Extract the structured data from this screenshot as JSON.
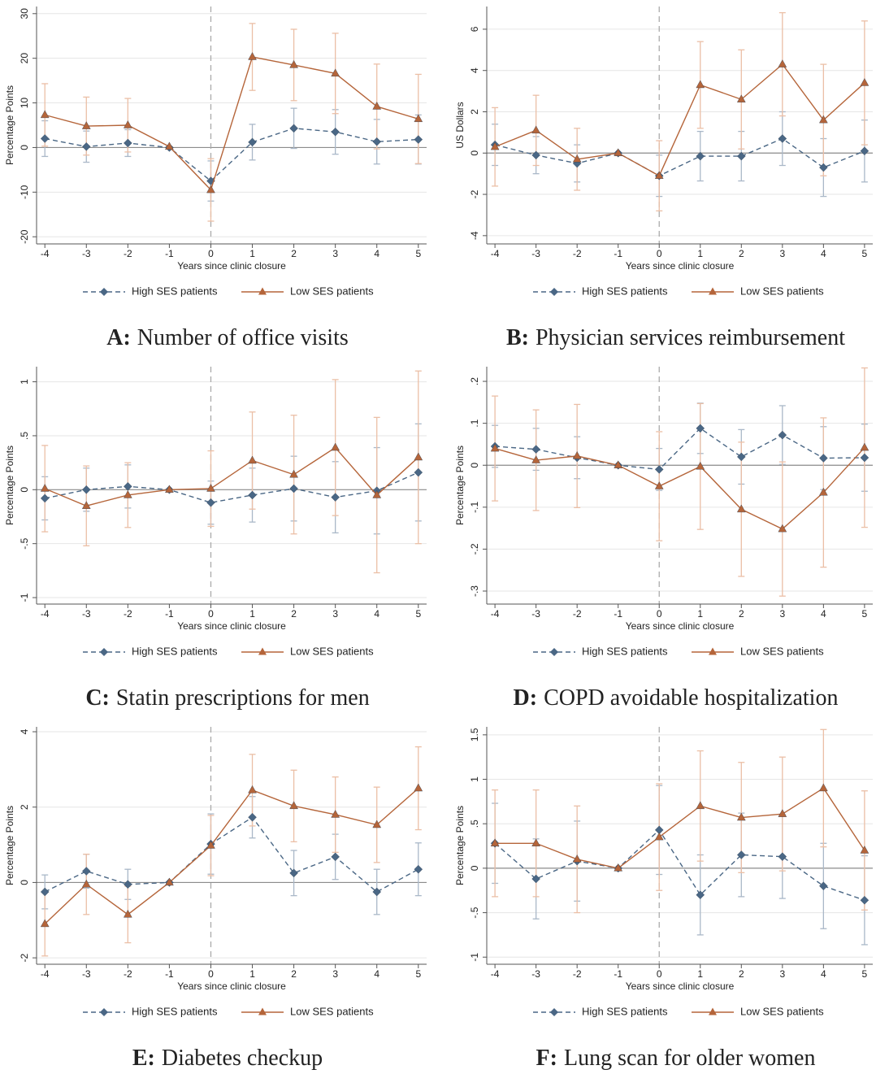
{
  "chart_data": [
    {
      "type": "line",
      "panel_label": "A:",
      "title": "Number of office visits",
      "ylabel": "Percentage Points",
      "xlabel": "Years since clinic closure",
      "x": [
        -4,
        -3,
        -2,
        -1,
        0,
        1,
        2,
        3,
        4,
        5
      ],
      "xlim": [
        -4.2,
        5.2
      ],
      "xticks": [
        -4,
        -3,
        -2,
        -1,
        0,
        1,
        2,
        3,
        4,
        5
      ],
      "ylim": [
        -21.6,
        31.6
      ],
      "yticks": [
        -20,
        -10,
        0,
        10,
        20,
        30
      ],
      "grid": true,
      "hline_y": 0,
      "vline_x": 0,
      "series": [
        {
          "name": "High SES patients",
          "color": "#4a6785",
          "error_color": "#aab8c8",
          "marker": "diamond",
          "dashed": true,
          "values": [
            2,
            0.2,
            1,
            0,
            -7.5,
            1.2,
            4.3,
            3.5,
            1.3,
            1.8
          ],
          "errors": [
            4,
            3.5,
            3,
            0,
            4.5,
            4,
            4.5,
            5,
            5,
            5.5
          ]
        },
        {
          "name": "Low SES patients",
          "color": "#b5653a",
          "error_color": "#ebbfa6",
          "marker": "triangle",
          "dashed": false,
          "values": [
            7.3,
            4.8,
            5,
            0.2,
            -9.5,
            20.3,
            18.5,
            16.6,
            9.2,
            6.4
          ],
          "errors": [
            7,
            6.5,
            6,
            0,
            7,
            7.5,
            8,
            9,
            9.5,
            10
          ]
        }
      ]
    },
    {
      "type": "line",
      "panel_label": "B:",
      "title": "Physician services reimbursement",
      "ylabel": "US Dollars",
      "xlabel": "Years since clinic closure",
      "x": [
        -4,
        -3,
        -2,
        -1,
        0,
        1,
        2,
        3,
        4,
        5
      ],
      "xlim": [
        -4.2,
        5.2
      ],
      "xticks": [
        -4,
        -3,
        -2,
        -1,
        0,
        1,
        2,
        3,
        4,
        5
      ],
      "ylim": [
        -4.4,
        7.1
      ],
      "yticks": [
        -4,
        -2,
        0,
        2,
        4,
        6
      ],
      "grid": true,
      "hline_y": 0,
      "vline_x": 0,
      "series": [
        {
          "name": "High SES patients",
          "color": "#4a6785",
          "error_color": "#aab8c8",
          "marker": "diamond",
          "dashed": true,
          "values": [
            0.4,
            -0.1,
            -0.5,
            0,
            -1.1,
            -0.15,
            -0.15,
            0.7,
            -0.7,
            0.1
          ],
          "errors": [
            1,
            0.9,
            0.9,
            0,
            1,
            1.2,
            1.2,
            1.3,
            1.4,
            1.5
          ]
        },
        {
          "name": "Low SES patients",
          "color": "#b5653a",
          "error_color": "#ebbfa6",
          "marker": "triangle",
          "dashed": false,
          "values": [
            0.3,
            1.1,
            -0.3,
            0,
            -1.1,
            3.3,
            2.6,
            4.3,
            1.6,
            3.4
          ],
          "errors": [
            1.9,
            1.7,
            1.5,
            0,
            1.7,
            2.1,
            2.4,
            2.5,
            2.7,
            3
          ]
        }
      ]
    },
    {
      "type": "line",
      "panel_label": "C:",
      "title": "Statin prescriptions for men",
      "ylabel": "Percentage Points",
      "xlabel": "Years since clinic closure",
      "x": [
        -4,
        -3,
        -2,
        -1,
        0,
        1,
        2,
        3,
        4,
        5
      ],
      "xlim": [
        -4.2,
        5.2
      ],
      "xticks": [
        -4,
        -3,
        -2,
        -1,
        0,
        1,
        2,
        3,
        4,
        5
      ],
      "ylim": [
        -1.06,
        1.14
      ],
      "yticks": [
        -1,
        {
          "value": -0.5,
          "label": "-.5"
        },
        0,
        {
          "value": 0.5,
          "label": ".5"
        },
        1
      ],
      "grid": true,
      "hline_y": 0,
      "vline_x": 0,
      "series": [
        {
          "name": "High SES patients",
          "color": "#4a6785",
          "error_color": "#aab8c8",
          "marker": "diamond",
          "dashed": true,
          "values": [
            -0.08,
            0,
            0.03,
            0,
            -0.12,
            -0.05,
            0.01,
            -0.07,
            -0.01,
            0.16
          ],
          "errors": [
            0.2,
            0.2,
            0.2,
            0,
            0.2,
            0.25,
            0.3,
            0.33,
            0.4,
            0.45
          ]
        },
        {
          "name": "Low SES patients",
          "color": "#b5653a",
          "error_color": "#ebbfa6",
          "marker": "triangle",
          "dashed": false,
          "values": [
            0.01,
            -0.15,
            -0.05,
            0,
            0.01,
            0.27,
            0.14,
            0.39,
            -0.05,
            0.3
          ],
          "errors": [
            0.4,
            0.37,
            0.3,
            0,
            0.35,
            0.45,
            0.55,
            0.63,
            0.72,
            0.8
          ]
        }
      ]
    },
    {
      "type": "line",
      "panel_label": "D:",
      "title": "COPD avoidable hospitalization",
      "ylabel": "Percentage Points",
      "xlabel": "Years since clinic closure",
      "x": [
        -4,
        -3,
        -2,
        -1,
        0,
        1,
        2,
        3,
        4,
        5
      ],
      "xlim": [
        -4.2,
        5.2
      ],
      "xticks": [
        -4,
        -3,
        -2,
        -1,
        0,
        1,
        2,
        3,
        4,
        5
      ],
      "ylim": [
        -0.331,
        0.235
      ],
      "yticks": [
        {
          "value": -0.3,
          "label": "-.3"
        },
        {
          "value": -0.2,
          "label": "-.2"
        },
        {
          "value": -0.1,
          "label": "-.1"
        },
        0,
        {
          "value": 0.1,
          "label": ".1"
        },
        {
          "value": 0.2,
          "label": ".2"
        }
      ],
      "grid": true,
      "hline_y": 0,
      "vline_x": 0,
      "series": [
        {
          "name": "High SES patients",
          "color": "#4a6785",
          "error_color": "#aab8c8",
          "marker": "diamond",
          "dashed": true,
          "values": [
            0.045,
            0.038,
            0.018,
            0,
            -0.01,
            0.088,
            0.02,
            0.072,
            0.017,
            0.018
          ],
          "errors": [
            0.05,
            0.05,
            0.05,
            0,
            0.05,
            0.06,
            0.065,
            0.07,
            0.075,
            0.08
          ]
        },
        {
          "name": "Low SES patients",
          "color": "#b5653a",
          "error_color": "#ebbfa6",
          "marker": "triangle",
          "dashed": false,
          "values": [
            0.04,
            0.012,
            0.022,
            0,
            -0.05,
            -0.003,
            -0.105,
            -0.152,
            -0.065,
            0.042
          ],
          "errors": [
            0.125,
            0.12,
            0.123,
            0,
            0.13,
            0.15,
            0.16,
            0.16,
            0.178,
            0.19
          ]
        }
      ]
    },
    {
      "type": "line",
      "panel_label": "E:",
      "title": "Diabetes checkup",
      "ylabel": "Percentage Points",
      "xlabel": "Years since clinic closure",
      "x": [
        -4,
        -3,
        -2,
        -1,
        0,
        1,
        2,
        3,
        4,
        5
      ],
      "xlim": [
        -4.2,
        5.2
      ],
      "xticks": [
        -4,
        -3,
        -2,
        -1,
        0,
        1,
        2,
        3,
        4,
        5
      ],
      "ylim": [
        -2.17,
        4.13
      ],
      "yticks": [
        -2,
        0,
        2,
        4
      ],
      "grid": true,
      "hline_y": 0,
      "vline_x": 0,
      "series": [
        {
          "name": "High SES patients",
          "color": "#4a6785",
          "error_color": "#aab8c8",
          "marker": "diamond",
          "dashed": true,
          "values": [
            -0.25,
            0.3,
            -0.05,
            0,
            1.02,
            1.73,
            0.25,
            0.68,
            -0.25,
            0.35
          ],
          "errors": [
            0.45,
            0.45,
            0.4,
            0,
            0.8,
            0.55,
            0.6,
            0.6,
            0.6,
            0.7
          ]
        },
        {
          "name": "Low SES patients",
          "color": "#b5653a",
          "error_color": "#ebbfa6",
          "marker": "triangle",
          "dashed": false,
          "values": [
            -1.1,
            -0.05,
            -0.85,
            0,
            0.98,
            2.45,
            2.03,
            1.8,
            1.53,
            2.5
          ],
          "errors": [
            0.85,
            0.8,
            0.75,
            0,
            0.8,
            0.95,
            0.95,
            1,
            1,
            1.1
          ]
        }
      ]
    },
    {
      "type": "line",
      "panel_label": "F:",
      "title": "Lung scan for older women",
      "ylabel": "Percentage Points",
      "xlabel": "Years since clinic closure",
      "x": [
        -4,
        -3,
        -2,
        -1,
        0,
        1,
        2,
        3,
        4,
        5
      ],
      "xlim": [
        -4.2,
        5.2
      ],
      "xticks": [
        -4,
        -3,
        -2,
        -1,
        0,
        1,
        2,
        3,
        4,
        5
      ],
      "ylim": [
        -1.08,
        1.59
      ],
      "yticks": [
        -1,
        {
          "value": -0.5,
          "label": "-.5"
        },
        0,
        {
          "value": 0.5,
          "label": ".5"
        },
        1,
        1.5
      ],
      "grid": true,
      "hline_y": 0,
      "vline_x": 0,
      "series": [
        {
          "name": "High SES patients",
          "color": "#4a6785",
          "error_color": "#aab8c8",
          "marker": "diamond",
          "dashed": true,
          "values": [
            0.28,
            -0.12,
            0.08,
            0,
            0.43,
            -0.3,
            0.15,
            0.13,
            -0.2,
            -0.36
          ],
          "errors": [
            0.45,
            0.45,
            0.45,
            0,
            0.5,
            0.45,
            0.47,
            0.47,
            0.48,
            0.5
          ]
        },
        {
          "name": "Low SES patients",
          "color": "#b5653a",
          "error_color": "#ebbfa6",
          "marker": "triangle",
          "dashed": false,
          "values": [
            0.28,
            0.28,
            0.1,
            0,
            0.35,
            0.7,
            0.57,
            0.61,
            0.9,
            0.2
          ],
          "errors": [
            0.6,
            0.6,
            0.6,
            0,
            0.6,
            0.62,
            0.62,
            0.64,
            0.66,
            0.67
          ]
        }
      ]
    }
  ]
}
